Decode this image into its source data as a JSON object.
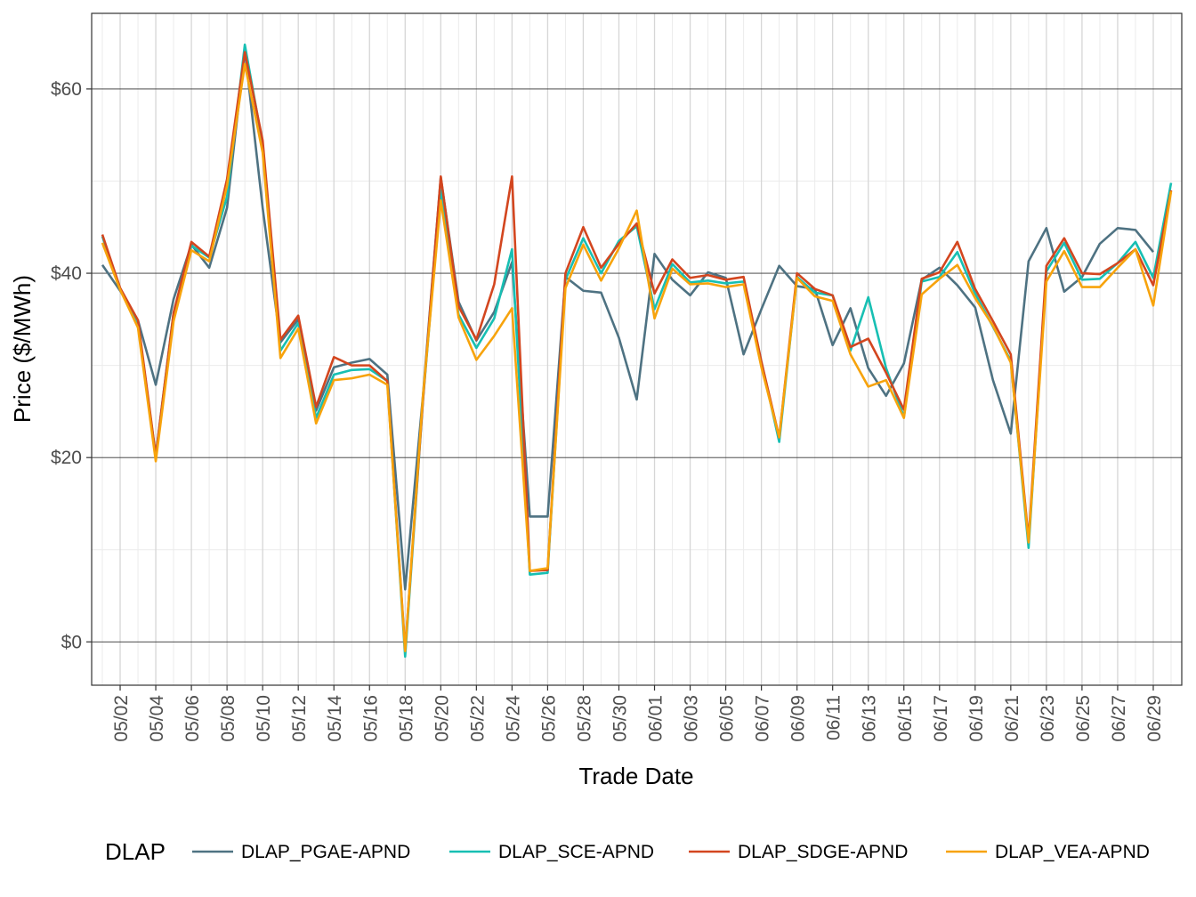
{
  "chart_data": {
    "type": "line",
    "title": "",
    "xlabel": "Trade Date",
    "ylabel": "Price ($/MWh)",
    "legend_title": "DLAP",
    "legend_position": "bottom",
    "ylim": [
      -4.7,
      68.2
    ],
    "y_ticks": [
      0,
      20,
      40,
      60
    ],
    "y_tick_labels": [
      "$0",
      "$20",
      "$40",
      "$60"
    ],
    "x_tick_labels": [
      "05/02",
      "05/04",
      "05/06",
      "05/08",
      "05/10",
      "05/12",
      "05/14",
      "05/16",
      "05/18",
      "05/20",
      "05/22",
      "05/24",
      "05/26",
      "05/28",
      "05/30",
      "06/01",
      "06/03",
      "06/05",
      "06/07",
      "06/09",
      "06/11",
      "06/13",
      "06/15",
      "06/17",
      "06/19",
      "06/21",
      "06/23",
      "06/25",
      "06/27",
      "06/29"
    ],
    "x": [
      "05/01",
      "05/02",
      "05/03",
      "05/04",
      "05/05",
      "05/06",
      "05/07",
      "05/08",
      "05/09",
      "05/10",
      "05/11",
      "05/12",
      "05/13",
      "05/14",
      "05/15",
      "05/16",
      "05/17",
      "05/18",
      "05/19",
      "05/20",
      "05/21",
      "05/22",
      "05/23",
      "05/24",
      "05/25",
      "05/26",
      "05/27",
      "05/28",
      "05/29",
      "05/30",
      "05/31",
      "06/01",
      "06/02",
      "06/03",
      "06/04",
      "06/05",
      "06/06",
      "06/07",
      "06/08",
      "06/09",
      "06/10",
      "06/11",
      "06/12",
      "06/13",
      "06/14",
      "06/15",
      "06/16",
      "06/17",
      "06/18",
      "06/19",
      "06/20",
      "06/21",
      "06/22",
      "06/23",
      "06/24",
      "06/25",
      "06/26",
      "06/27",
      "06/28",
      "06/29",
      "06/30"
    ],
    "grid": true,
    "series": [
      {
        "name": "DLAP_PGAE-APND",
        "color": "#4e7282",
        "values": [
          40.9,
          38.1,
          34.9,
          27.9,
          37.2,
          43.1,
          40.6,
          47.1,
          64.2,
          47.1,
          32.5,
          35.0,
          25.1,
          29.8,
          30.3,
          30.7,
          29.0,
          5.7,
          26.7,
          50.4,
          36.9,
          32.7,
          35.8,
          41.2,
          13.6,
          13.6,
          39.6,
          38.1,
          37.9,
          33.0,
          26.3,
          42.1,
          39.3,
          37.6,
          40.1,
          39.5,
          31.2,
          36.1,
          40.8,
          38.6,
          38.3,
          32.2,
          36.2,
          29.7,
          26.7,
          30.2,
          39.3,
          40.6,
          38.7,
          36.3,
          28.4,
          22.6,
          41.3,
          44.9,
          38.0,
          39.6,
          43.2,
          44.9,
          44.7,
          42.3,
          null
        ]
      },
      {
        "name": "DLAP_SCE-APND",
        "color": "#17bfb3",
        "values": [
          44.0,
          38.3,
          34.3,
          20.2,
          35.7,
          43.0,
          41.7,
          48.3,
          64.8,
          54.0,
          31.6,
          34.6,
          24.3,
          29.0,
          29.5,
          29.6,
          28.3,
          -1.6,
          26.2,
          49.0,
          35.5,
          31.9,
          35.1,
          42.6,
          7.3,
          7.5,
          39.3,
          43.8,
          40.0,
          43.5,
          45.1,
          36.1,
          41.0,
          39.0,
          39.2,
          38.9,
          39.1,
          30.4,
          21.7,
          39.6,
          37.9,
          37.6,
          31.6,
          37.4,
          29.7,
          24.4,
          39.1,
          39.6,
          42.3,
          37.8,
          34.2,
          30.5,
          10.2,
          40.2,
          43.3,
          39.3,
          39.4,
          41.1,
          43.4,
          39.5,
          49.8
        ]
      },
      {
        "name": "DLAP_SDGE-APND",
        "color": "#d3461f",
        "values": [
          44.2,
          38.4,
          34.9,
          20.2,
          35.7,
          43.4,
          41.8,
          50.2,
          64.0,
          54.4,
          32.8,
          35.4,
          25.5,
          30.9,
          30.0,
          30.0,
          28.3,
          -0.9,
          26.2,
          50.5,
          36.4,
          32.8,
          38.8,
          50.5,
          7.7,
          7.8,
          40.0,
          45.0,
          40.6,
          43.2,
          45.4,
          37.8,
          41.5,
          39.5,
          39.8,
          39.3,
          39.6,
          30.4,
          22.2,
          40.0,
          38.3,
          37.6,
          32.0,
          32.9,
          29.2,
          25.2,
          39.4,
          40.1,
          43.4,
          38.3,
          34.8,
          31.2,
          11.1,
          40.8,
          43.8,
          40.0,
          39.9,
          41.1,
          42.6,
          38.7,
          49.0
        ]
      },
      {
        "name": "DLAP_VEA-APND",
        "color": "#f7a30c",
        "values": [
          43.3,
          38.2,
          34.1,
          19.6,
          34.8,
          42.5,
          41.3,
          49.5,
          62.7,
          53.1,
          30.8,
          34.0,
          23.7,
          28.4,
          28.6,
          29.0,
          27.9,
          -1.0,
          26.7,
          47.9,
          35.2,
          30.6,
          33.2,
          36.2,
          7.7,
          8.0,
          38.4,
          43.1,
          39.2,
          42.7,
          46.8,
          35.1,
          40.5,
          38.8,
          38.9,
          38.5,
          38.8,
          29.8,
          22.2,
          39.5,
          37.5,
          37.0,
          31.2,
          27.7,
          28.4,
          24.3,
          37.7,
          39.4,
          40.9,
          37.3,
          34.3,
          30.3,
          10.8,
          39.1,
          42.4,
          38.5,
          38.5,
          40.6,
          42.6,
          36.5,
          48.9
        ]
      }
    ]
  }
}
